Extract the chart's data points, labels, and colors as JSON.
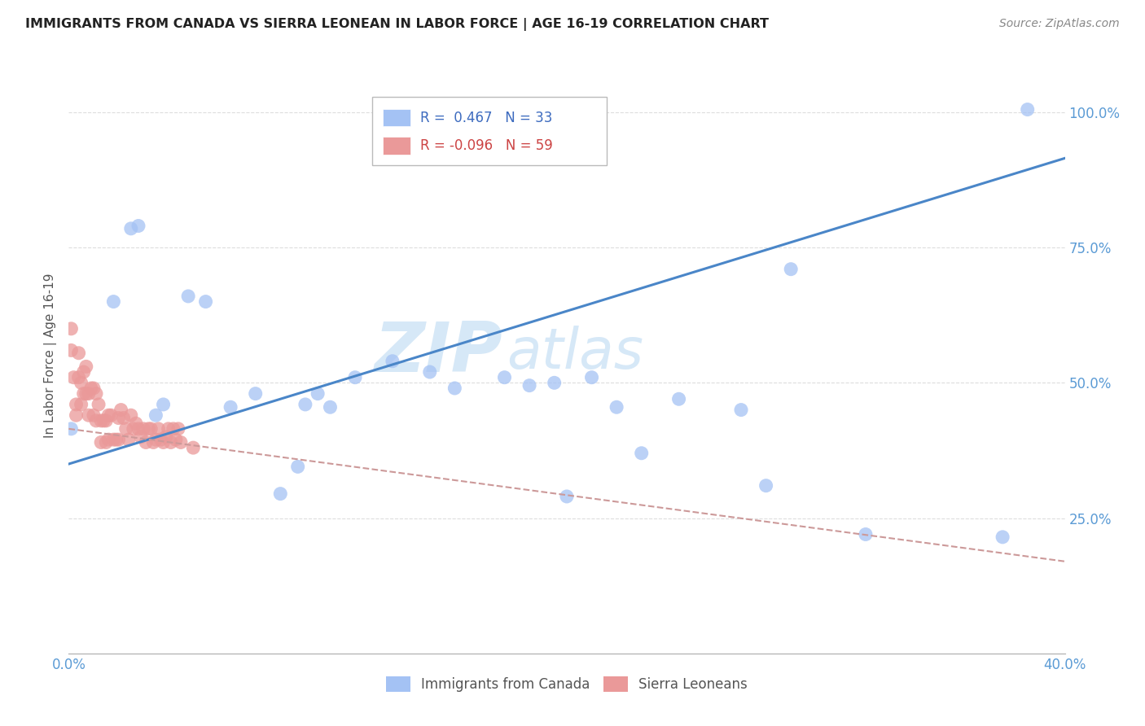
{
  "title": "IMMIGRANTS FROM CANADA VS SIERRA LEONEAN IN LABOR FORCE | AGE 16-19 CORRELATION CHART",
  "source": "Source: ZipAtlas.com",
  "ylabel": "In Labor Force | Age 16-19",
  "x_min": 0.0,
  "x_max": 0.4,
  "y_min": 0.0,
  "y_max": 1.1,
  "x_ticks": [
    0.0,
    0.1,
    0.2,
    0.3,
    0.4
  ],
  "x_tick_labels": [
    "0.0%",
    "",
    "",
    "",
    "40.0%"
  ],
  "y_ticks": [
    0.25,
    0.5,
    0.75,
    1.0
  ],
  "y_tick_labels": [
    "25.0%",
    "50.0%",
    "75.0%",
    "100.0%"
  ],
  "r_canada": 0.467,
  "n_canada": 33,
  "r_sierra": -0.096,
  "n_sierra": 59,
  "color_canada": "#a4c2f4",
  "color_sierra": "#ea9999",
  "color_canada_line": "#4a86c8",
  "color_sierra_line": "#cc9999",
  "legend_label_canada": "Immigrants from Canada",
  "legend_label_sierra": "Sierra Leoneans",
  "canada_x": [
    0.001,
    0.018,
    0.025,
    0.028,
    0.035,
    0.038,
    0.048,
    0.055,
    0.065,
    0.075,
    0.085,
    0.092,
    0.095,
    0.1,
    0.105,
    0.115,
    0.13,
    0.145,
    0.155,
    0.175,
    0.185,
    0.195,
    0.2,
    0.21,
    0.22,
    0.23,
    0.245,
    0.27,
    0.28,
    0.29,
    0.32,
    0.375,
    0.385
  ],
  "canada_y": [
    0.415,
    0.65,
    0.785,
    0.79,
    0.44,
    0.46,
    0.66,
    0.65,
    0.455,
    0.48,
    0.295,
    0.345,
    0.46,
    0.48,
    0.455,
    0.51,
    0.54,
    0.52,
    0.49,
    0.51,
    0.495,
    0.5,
    0.29,
    0.51,
    0.455,
    0.37,
    0.47,
    0.45,
    0.31,
    0.71,
    0.22,
    0.215,
    1.005
  ],
  "sierra_x": [
    0.001,
    0.001,
    0.002,
    0.003,
    0.003,
    0.004,
    0.004,
    0.005,
    0.005,
    0.006,
    0.006,
    0.007,
    0.007,
    0.008,
    0.008,
    0.009,
    0.01,
    0.01,
    0.011,
    0.011,
    0.012,
    0.013,
    0.013,
    0.014,
    0.015,
    0.015,
    0.016,
    0.016,
    0.017,
    0.018,
    0.019,
    0.02,
    0.02,
    0.021,
    0.022,
    0.023,
    0.024,
    0.025,
    0.026,
    0.027,
    0.028,
    0.029,
    0.03,
    0.031,
    0.032,
    0.033,
    0.034,
    0.035,
    0.036,
    0.037,
    0.038,
    0.039,
    0.04,
    0.041,
    0.042,
    0.043,
    0.044,
    0.045,
    0.05
  ],
  "sierra_y": [
    0.6,
    0.56,
    0.51,
    0.46,
    0.44,
    0.555,
    0.51,
    0.5,
    0.46,
    0.52,
    0.48,
    0.53,
    0.48,
    0.48,
    0.44,
    0.49,
    0.49,
    0.44,
    0.48,
    0.43,
    0.46,
    0.43,
    0.39,
    0.43,
    0.43,
    0.39,
    0.44,
    0.395,
    0.44,
    0.395,
    0.395,
    0.435,
    0.395,
    0.45,
    0.435,
    0.415,
    0.395,
    0.44,
    0.415,
    0.425,
    0.415,
    0.4,
    0.415,
    0.39,
    0.415,
    0.415,
    0.39,
    0.395,
    0.415,
    0.395,
    0.39,
    0.4,
    0.415,
    0.39,
    0.415,
    0.395,
    0.415,
    0.39,
    0.38
  ],
  "watermark_line1": "ZIP",
  "watermark_line2": "atlas",
  "watermark_color": "#d6e8f7",
  "background_color": "#ffffff",
  "grid_color": "#dddddd",
  "canada_line_x": [
    0.0,
    0.4
  ],
  "canada_line_y": [
    0.35,
    0.915
  ],
  "sierra_line_x": [
    0.0,
    0.4
  ],
  "sierra_line_y": [
    0.415,
    0.17
  ]
}
